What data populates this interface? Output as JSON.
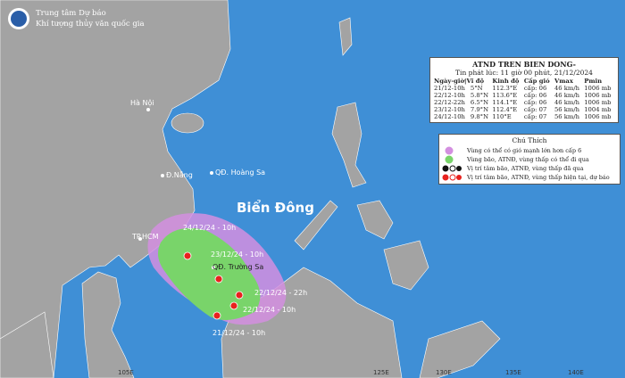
{
  "header": {
    "org_line1": "Trung tâm Dự báo",
    "org_line2": "Khí tượng thủy văn quốc gia"
  },
  "info_box": {
    "title": "ATND TREN BIEN DONG-",
    "issued": "Tin phát lúc: 11 giờ 00 phút, 21/12/2024",
    "columns": [
      "Ngày-giờ|Vĩ độ",
      "Kinh độ",
      "Cấp gió",
      "Vmax",
      "Pmin"
    ],
    "rows": [
      [
        "21/12-10h",
        "5°N",
        "112.3°E",
        "cấp: 06",
        "46 km/h",
        "1006 mb"
      ],
      [
        "22/12-10h",
        "5.8°N",
        "113.6°E",
        "cấp: 06",
        "46 km/h",
        "1006 mb"
      ],
      [
        "22/12-22h",
        "6.5°N",
        "114.1°E",
        "cấp: 06",
        "46 km/h",
        "1006 mb"
      ],
      [
        "23/12-10h",
        "7.9°N",
        "112.4°E",
        "cấp: 07",
        "56 km/h",
        "1004 mb"
      ],
      [
        "24/12-10h",
        "9.8°N",
        "110°E",
        "cấp: 07",
        "56 km/h",
        "1006 mb"
      ]
    ]
  },
  "legend": {
    "title": "Chú Thích",
    "items": [
      "Vùng có thể có gió mạnh lớn hơn cấp 6",
      "Vùng bão, ATNĐ, vùng thấp có thể đi qua",
      "Vị trí tâm bão, ATNĐ, vùng thấp đã qua",
      "Vị trí tâm bão, ATNĐ, vùng thấp hiện tại, dự báo"
    ]
  },
  "map_labels": {
    "hanoi": "Hà Nội",
    "danang": "Đ.Nẵng",
    "hoangsa": "QĐ. Hoàng Sa",
    "sea": "Biển Đông",
    "hcm": "TP.HCM",
    "truongsa": "QĐ. Trường Sa"
  },
  "track_labels": [
    "24/12/24 - 10h",
    "23/12/24 - 10h",
    "22/12/24 - 22h",
    "22/12/24 - 10h",
    "21/12/24 - 10h"
  ],
  "longitudes": [
    "105E",
    "125E",
    "130E",
    "135E",
    "140E"
  ]
}
